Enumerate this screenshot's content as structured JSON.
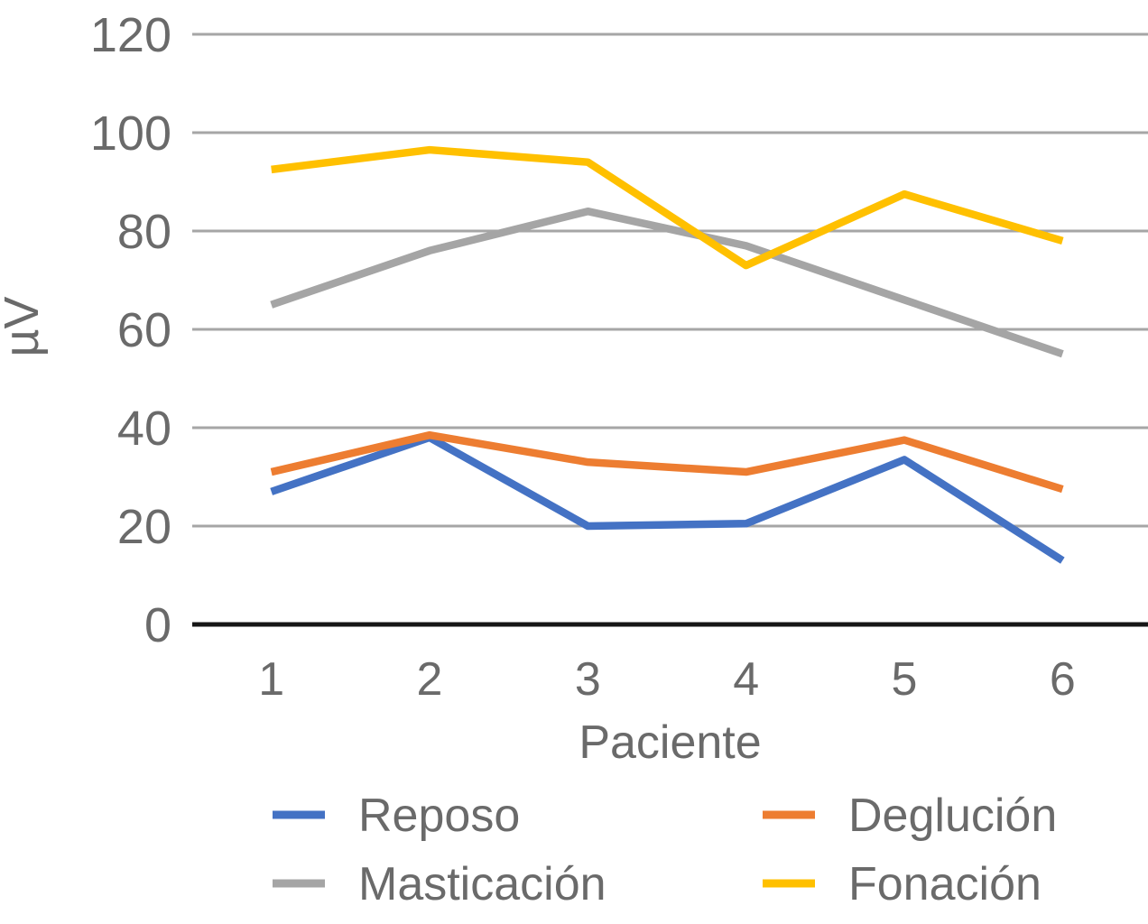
{
  "chart_data": {
    "type": "line",
    "title": "",
    "xlabel": "Paciente",
    "ylabel": "µV",
    "categories": [
      "1",
      "2",
      "3",
      "4",
      "5",
      "6"
    ],
    "series": [
      {
        "name": "Reposo",
        "color": "#4472C4",
        "values": [
          27,
          38,
          20,
          20.5,
          33.5,
          13
        ]
      },
      {
        "name": "Deglución",
        "color": "#ED7D31",
        "values": [
          31,
          38.5,
          33,
          31,
          37.5,
          27.5
        ]
      },
      {
        "name": "Masticación",
        "color": "#A5A5A5",
        "values": [
          65,
          76,
          84,
          77,
          66,
          55
        ]
      },
      {
        "name": "Fonación",
        "color": "#FFC000",
        "values": [
          92.5,
          96.5,
          94,
          73,
          87.5,
          78
        ]
      }
    ],
    "ylim": [
      0,
      120
    ],
    "ytick_step": 20,
    "yticks": [
      0,
      20,
      40,
      60,
      80,
      100,
      120
    ],
    "grid": true,
    "legend_position": "bottom",
    "legend_layout": "2x2"
  },
  "style_colors": {
    "grid_line": "#A6A6A6",
    "axis_line": "#161616",
    "label_text": "#6A6A6A",
    "background": "#FFFFFF"
  }
}
